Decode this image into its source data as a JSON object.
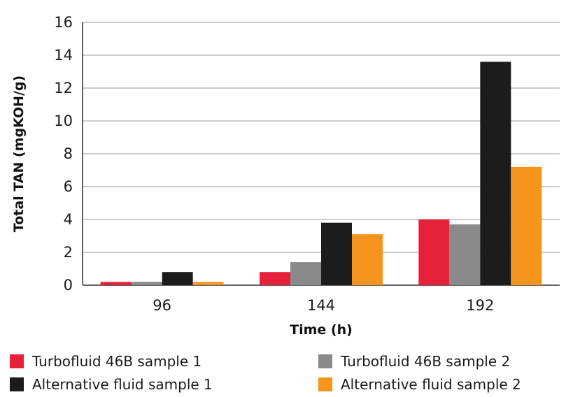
{
  "chart_data": {
    "type": "bar",
    "title": "",
    "xlabel": "Time (h)",
    "ylabel": "Total TAN (mgKOH/g)",
    "categories": [
      "96",
      "144",
      "192"
    ],
    "ylim": [
      0,
      16
    ],
    "yticks": [
      0,
      2,
      4,
      6,
      8,
      10,
      12,
      14,
      16
    ],
    "grid": true,
    "legend_position": "bottom",
    "series": [
      {
        "name": "Turbofluid 46B sample 1",
        "color": "#e8213b",
        "values": [
          0.2,
          0.8,
          4.0
        ]
      },
      {
        "name": "Turbofluid 46B sample 2",
        "color": "#8a8a8c",
        "values": [
          0.2,
          1.4,
          3.7
        ]
      },
      {
        "name": "Alternative fluid sample 1",
        "color": "#1c1c1c",
        "values": [
          0.8,
          3.8,
          13.6
        ]
      },
      {
        "name": "Alternative fluid sample 2",
        "color": "#f7941d",
        "values": [
          0.2,
          3.1,
          7.2
        ]
      }
    ]
  }
}
